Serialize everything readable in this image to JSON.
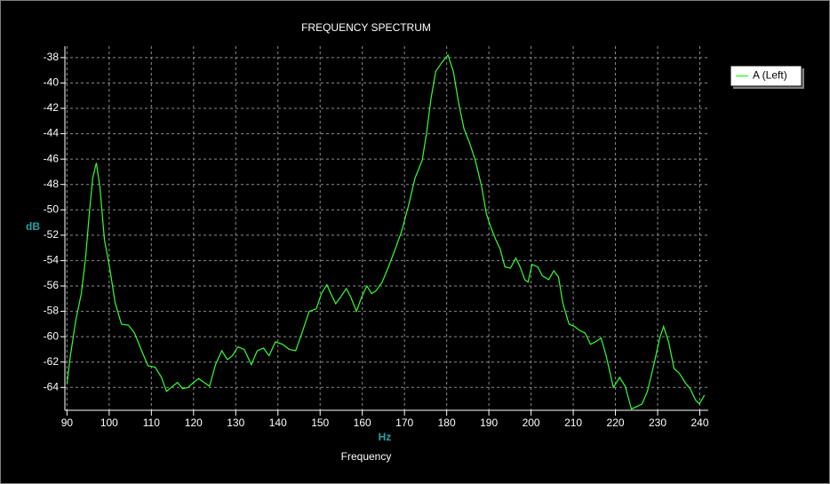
{
  "chart_data": {
    "type": "line",
    "title": "FREQUENCY SPECTRUM",
    "x_label_unit": "Hz",
    "x_label": "Frequency",
    "y_label": "dB",
    "xlim": [
      89.5,
      242
    ],
    "ylim": [
      -65.8,
      -37.1
    ],
    "xticks": [
      90,
      100,
      110,
      120,
      130,
      140,
      150,
      160,
      170,
      180,
      190,
      200,
      210,
      220,
      230,
      240
    ],
    "yticks": [
      -64,
      -62,
      -60,
      -58,
      -56,
      -54,
      -52,
      -50,
      -48,
      -46,
      -44,
      -42,
      -40,
      -38
    ],
    "grid": true,
    "legend": "top-right",
    "series": [
      {
        "name": "A (Left)",
        "color": "#33ff33",
        "x": [
          90,
          90.8,
          92.1,
          93.4,
          94.4,
          95.3,
          96.1,
          96.96,
          97.8,
          98.9,
          100.1,
          101.4,
          102.9,
          104.6,
          106,
          107.7,
          109.2,
          110.9,
          112.4,
          113.6,
          114.7,
          116.2,
          117.4,
          118.7,
          120,
          121.2,
          122.5,
          123.8,
          125.2,
          126.7,
          128,
          129.2,
          130.5,
          132,
          133.7,
          135.1,
          136.6,
          137.9,
          139.4,
          141.1,
          142.7,
          144.2,
          145.7,
          147.4,
          149.1,
          150.3,
          151.6,
          152.4,
          153.7,
          154.8,
          156.2,
          157.3,
          158.6,
          159.8,
          161.1,
          162.2,
          163.2,
          164.7,
          166.2,
          167.8,
          169.3,
          171,
          172.5,
          174.2,
          175.2,
          176.3,
          177.4,
          178.8,
          180.3,
          181.6,
          182.8,
          184.1,
          185.4,
          186.8,
          188.3,
          189.4,
          190.4,
          191.7,
          192.7,
          193.8,
          195.1,
          196.4,
          197.4,
          198.5,
          199.3,
          200.2,
          201.6,
          202.7,
          204.2,
          205.4,
          206.5,
          207.5,
          209,
          210.3,
          211.5,
          212.8,
          214.1,
          215.3,
          216.6,
          217.8,
          219.5,
          221,
          222.3,
          223.8,
          225.1,
          226.3,
          227.6,
          229.1,
          230.5,
          231.4,
          232.6,
          233.9,
          235.2,
          236.5,
          237.7,
          239,
          239.9,
          241.1
        ],
        "values": [
          -63.7,
          -61.5,
          -58.7,
          -56.6,
          -53.8,
          -50.3,
          -47.5,
          -46.3,
          -48.2,
          -52.4,
          -54.5,
          -57.3,
          -59,
          -59.1,
          -59.7,
          -61.1,
          -62.3,
          -62.4,
          -63.2,
          -64.3,
          -64,
          -63.6,
          -64.1,
          -64,
          -63.6,
          -63.3,
          -63.6,
          -63.9,
          -62.2,
          -61.1,
          -61.8,
          -61.5,
          -60.8,
          -61,
          -62.2,
          -61.1,
          -60.9,
          -61.5,
          -60.4,
          -60.6,
          -61,
          -61.1,
          -59.7,
          -58,
          -57.8,
          -56.6,
          -55.9,
          -56.5,
          -57.4,
          -56.9,
          -56.2,
          -56.9,
          -58,
          -56.9,
          -56,
          -56.6,
          -56.4,
          -55.7,
          -54.5,
          -53.1,
          -51.7,
          -49.6,
          -47.5,
          -46.1,
          -44,
          -41.2,
          -39.1,
          -38.4,
          -37.8,
          -39.1,
          -41.5,
          -43.6,
          -44.7,
          -46.1,
          -48.2,
          -50.3,
          -51.3,
          -52.4,
          -53.1,
          -54.5,
          -54.6,
          -53.8,
          -54.5,
          -55.5,
          -55.7,
          -54.3,
          -54.5,
          -55.2,
          -55.5,
          -54.8,
          -55.3,
          -57.3,
          -59,
          -59.2,
          -59.5,
          -59.7,
          -60.6,
          -60.4,
          -60.1,
          -61.5,
          -64,
          -63.2,
          -63.9,
          -65.7,
          -65.5,
          -65.3,
          -64.3,
          -62.2,
          -60.1,
          -59.2,
          -60.4,
          -62.5,
          -62.9,
          -63.6,
          -64.1,
          -65,
          -65.3,
          -64.6
        ]
      }
    ]
  }
}
